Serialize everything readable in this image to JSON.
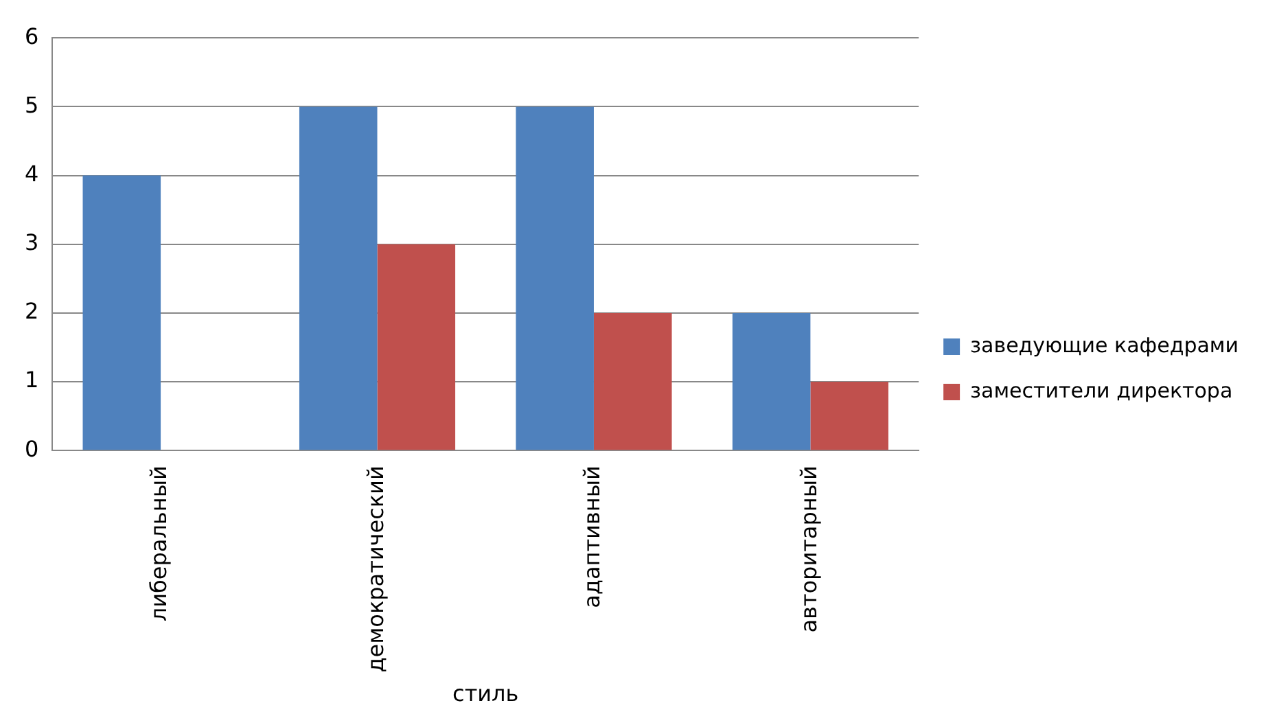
{
  "chart_data": {
    "type": "bar",
    "xlabel": "стиль",
    "categories": [
      "либеральный",
      "демократический",
      "адаптивный",
      "авторитарный"
    ],
    "series": [
      {
        "name": "заведующие кафедрами",
        "color": "#4f81bd",
        "values": [
          4,
          5,
          5,
          2
        ]
      },
      {
        "name": "заместители директора",
        "color": "#c0504d",
        "values": [
          0,
          3,
          2,
          1
        ]
      }
    ],
    "ylim": [
      0,
      6
    ],
    "yticks": [
      0,
      1,
      2,
      3,
      4,
      5,
      6
    ],
    "grid": "y",
    "legend": "right"
  }
}
